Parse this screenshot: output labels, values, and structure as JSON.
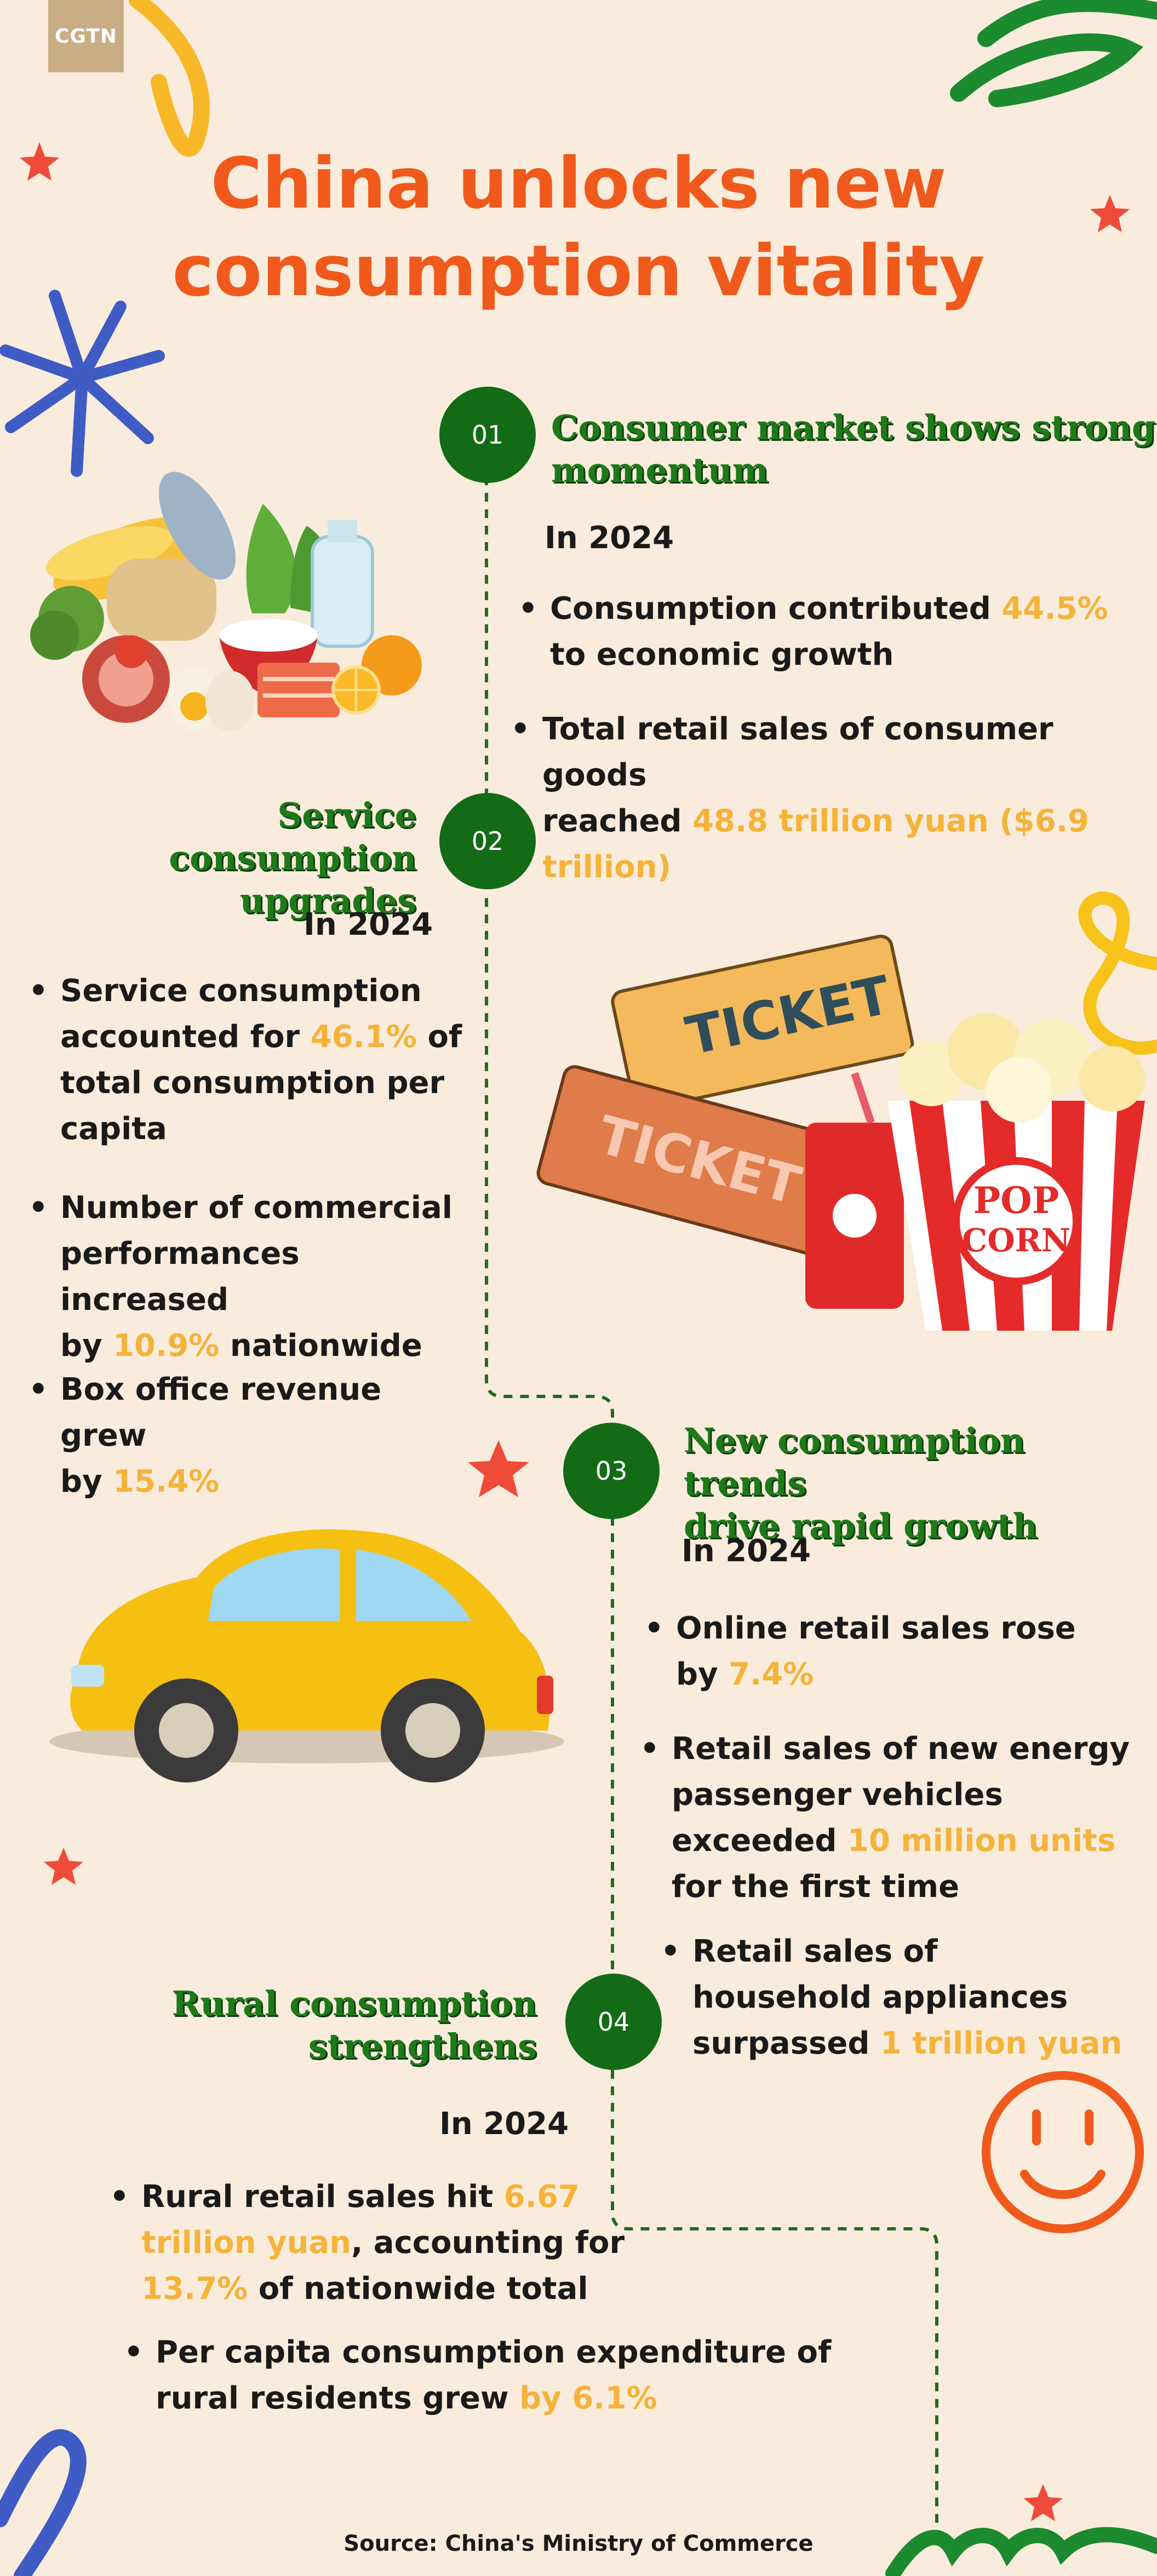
{
  "brand": {
    "logo_text": "CGTN"
  },
  "title": {
    "line1": "China unlocks new",
    "line2": "consumption vitality"
  },
  "colors": {
    "background": "#f9ecdd",
    "title": "#ef5a1c",
    "heading_green": "#1e7a19",
    "node_green": "#136b16",
    "highlight": "#f5b33a",
    "text": "#1a1a1a"
  },
  "sections": [
    {
      "number": "01",
      "heading_line1": "Consumer market shows strong",
      "heading_line2": "momentum",
      "year": "In 2024",
      "bullets": [
        {
          "parts": [
            "Consumption contributed ",
            "44.5%",
            "to economic growth"
          ]
        },
        {
          "parts": [
            "Total retail sales of consumer goods",
            "reached ",
            "48.8 trillion yuan ($6.9",
            "trillion)"
          ]
        }
      ]
    },
    {
      "number": "02",
      "heading_line1": "Service consumption",
      "heading_line2": "upgrades",
      "year": "In 2024",
      "bullets": [
        {
          "parts": [
            "Service consumption",
            "accounted for ",
            "46.1%",
            " of",
            "total consumption per",
            "capita"
          ]
        },
        {
          "parts": [
            "Number of commercial",
            "performances increased",
            "by ",
            "10.9%",
            " nationwide"
          ]
        },
        {
          "parts": [
            "Box office revenue grew",
            "by ",
            "15.4%"
          ]
        }
      ]
    },
    {
      "number": "03",
      "heading_line1": "New consumption trends",
      "heading_line2": "drive rapid growth",
      "year": "In 2024",
      "bullets": [
        {
          "parts": [
            "Online retail sales rose",
            "by ",
            "7.4%"
          ]
        },
        {
          "parts": [
            "Retail sales of new energy",
            "passenger vehicles",
            "exceeded ",
            "10 million units",
            "for the first time"
          ]
        },
        {
          "parts": [
            "Retail sales of",
            "household appliances",
            "surpassed ",
            "1 trillion yuan"
          ]
        }
      ]
    },
    {
      "number": "04",
      "heading_line1": "Rural consumption",
      "heading_line2": "strengthens",
      "year": "In 2024",
      "bullets": [
        {
          "parts": [
            "Rural retail sales hit ",
            "6.67",
            "trillion yuan",
            ", accounting for",
            "13.7%",
            " of nationwide total"
          ]
        },
        {
          "parts": [
            "Per capita consumption expenditure of",
            "rural residents grew ",
            "by 6.1%"
          ]
        }
      ]
    }
  ],
  "illustrations": {
    "food": "food-groceries-illustration",
    "tickets": "ticket-popcorn-illustration",
    "ticket_text_1": "TICKET",
    "ticket_text_2": "TICKET",
    "popcorn_text_1": "POP",
    "popcorn_text_2": "CORN",
    "car": "yellow-car-illustration",
    "smiley": "smiley-face-icon"
  },
  "source": "Source: China's Ministry of Commerce"
}
